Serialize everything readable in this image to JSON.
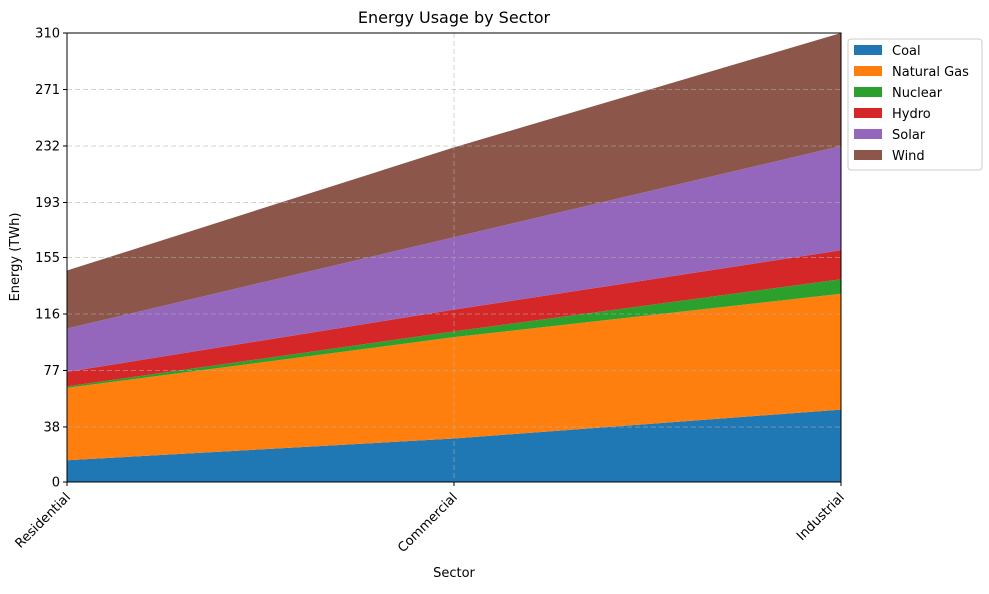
{
  "chart_data": {
    "type": "area",
    "stacked": true,
    "title": "Energy Usage by Sector",
    "xlabel": "Sector",
    "ylabel": "Energy (TWh)",
    "categories": [
      "Residential",
      "Commercial",
      "Industrial"
    ],
    "ylim": [
      0,
      310
    ],
    "yticks": [
      "0",
      "38",
      "77",
      "116",
      "155",
      "193",
      "232",
      "271",
      "310"
    ],
    "grid": true,
    "legend_position": "outside top-right",
    "series": [
      {
        "name": "Coal",
        "color": "#1f77b4",
        "values": [
          15,
          30,
          50
        ]
      },
      {
        "name": "Natural Gas",
        "color": "#ff7f0e",
        "values": [
          50,
          70,
          80
        ]
      },
      {
        "name": "Nuclear",
        "color": "#2ca02c",
        "values": [
          1,
          4,
          10
        ]
      },
      {
        "name": "Hydro",
        "color": "#d62728",
        "values": [
          10,
          15,
          20
        ]
      },
      {
        "name": "Solar",
        "color": "#9467bd",
        "values": [
          30,
          50,
          72
        ]
      },
      {
        "name": "Wind",
        "color": "#8c564b",
        "values": [
          40,
          62,
          78
        ]
      }
    ]
  }
}
